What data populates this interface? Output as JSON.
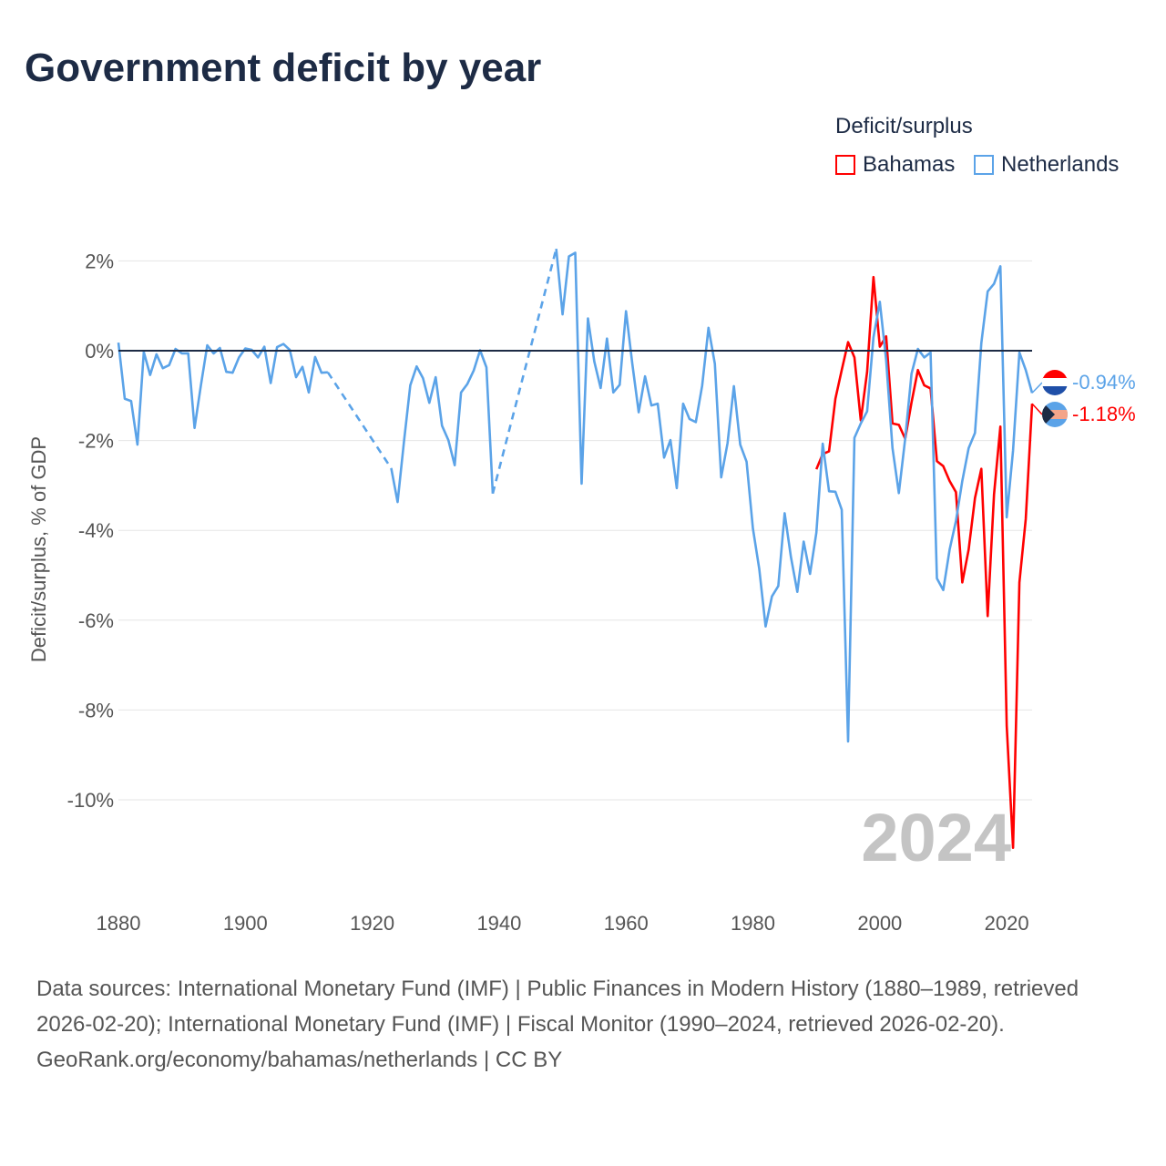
{
  "title": "Government deficit by year",
  "legend": {
    "title": "Deficit/surplus",
    "items": [
      {
        "name": "Bahamas",
        "color": "#ff0000"
      },
      {
        "name": "Netherlands",
        "color": "#5ba3e8"
      }
    ]
  },
  "year_watermark": "2024",
  "end_labels": {
    "netherlands": "-0.94%",
    "bahamas": "-1.18%"
  },
  "footer": {
    "sources": "Data sources: International Monetary Fund (IMF) | Public Finances in Modern History (1880–1989, retrieved 2026-02-20); International Monetary Fund (IMF) | Fiscal Monitor (1990–2024, retrieved 2026-02-20).",
    "credit": "GeoRank.org/economy/bahamas/netherlands | CC BY"
  },
  "chart_data": {
    "type": "line",
    "title": "Government deficit by year",
    "xlabel": "",
    "ylabel": "Deficit/surplus, % of GDP",
    "xlim": [
      1880,
      2024
    ],
    "ylim": [
      -11.2,
      2.3
    ],
    "x_ticks": [
      1880,
      1900,
      1920,
      1940,
      1960,
      1980,
      2000,
      2020
    ],
    "y_ticks": [
      2,
      0,
      -2,
      -4,
      -6,
      -8,
      -10
    ],
    "y_tick_labels": [
      "2%",
      "0%",
      "-2%",
      "-4%",
      "-6%",
      "-8%",
      "-10%"
    ],
    "x_tick_labels": [
      "1880",
      "1900",
      "1920",
      "1940",
      "1960",
      "1980",
      "2000",
      "2020"
    ],
    "grid": true,
    "legend_position": "top-right",
    "series": [
      {
        "name": "Netherlands",
        "color": "#5ba3e8",
        "start_year": 1880,
        "values": [
          0.18,
          -1.07,
          -1.12,
          -2.09,
          -0.03,
          -0.54,
          -0.08,
          -0.39,
          -0.32,
          0.04,
          -0.06,
          -0.06,
          -1.72,
          -0.77,
          0.12,
          -0.06,
          0.06,
          -0.47,
          -0.49,
          -0.15,
          0.05,
          0.02,
          -0.15,
          0.09,
          -0.72,
          0.08,
          0.15,
          0.02,
          -0.59,
          -0.36,
          -0.93,
          -0.14,
          -0.49,
          -0.48,
          null,
          null,
          null,
          null,
          null,
          null,
          null,
          null,
          null,
          -2.62,
          -3.37,
          -2.03,
          -0.77,
          -0.35,
          -0.61,
          -1.16,
          -0.59,
          -1.67,
          -1.99,
          -2.55,
          -0.93,
          -0.74,
          -0.44,
          0.01,
          -0.37,
          -3.18,
          null,
          null,
          null,
          null,
          null,
          null,
          null,
          null,
          null,
          2.27,
          0.81,
          2.1,
          2.18,
          -2.96,
          0.72,
          -0.24,
          -0.83,
          0.27,
          -0.93,
          -0.76,
          0.88,
          -0.3,
          -1.37,
          -0.57,
          -1.22,
          -1.18,
          -2.38,
          -1.99,
          -3.06,
          -1.18,
          -1.52,
          -1.59,
          -0.78,
          0.51,
          -0.29,
          -2.82,
          -2.06,
          -0.79,
          -2.09,
          -2.47,
          -3.96,
          -4.86,
          -6.14,
          -5.47,
          -5.24,
          -3.62,
          -4.6,
          -5.37,
          -4.25,
          -4.97,
          -4.05,
          -2.07,
          -3.13,
          -3.14,
          -3.54,
          -8.7,
          -1.94,
          -1.62,
          -1.35,
          0.3,
          1.09,
          -0.21,
          -2.17,
          -3.17,
          -1.96,
          -0.51,
          0.04,
          -0.15,
          -0.04,
          -5.07,
          -5.33,
          -4.43,
          -3.79,
          -2.9,
          -2.17,
          -1.83,
          0.17,
          1.32,
          1.49,
          1.88,
          -3.71,
          -2.22,
          -0.04,
          -0.43,
          -0.94
        ]
      },
      {
        "name": "Bahamas",
        "color": "#ff0000",
        "start_year": 1990,
        "values": [
          -2.64,
          -2.3,
          -2.24,
          -1.07,
          -0.43,
          0.19,
          -0.15,
          -1.55,
          -0.47,
          1.64,
          0.09,
          0.32,
          -1.62,
          -1.65,
          -1.96,
          -1.15,
          -0.43,
          -0.77,
          -0.84,
          -2.46,
          -2.57,
          -2.9,
          -3.15,
          -5.16,
          -4.43,
          -3.28,
          -2.63,
          -5.91,
          -3.2,
          -1.69,
          -8.35,
          -11.07,
          -5.16,
          -3.75,
          -1.18
        ]
      }
    ]
  }
}
